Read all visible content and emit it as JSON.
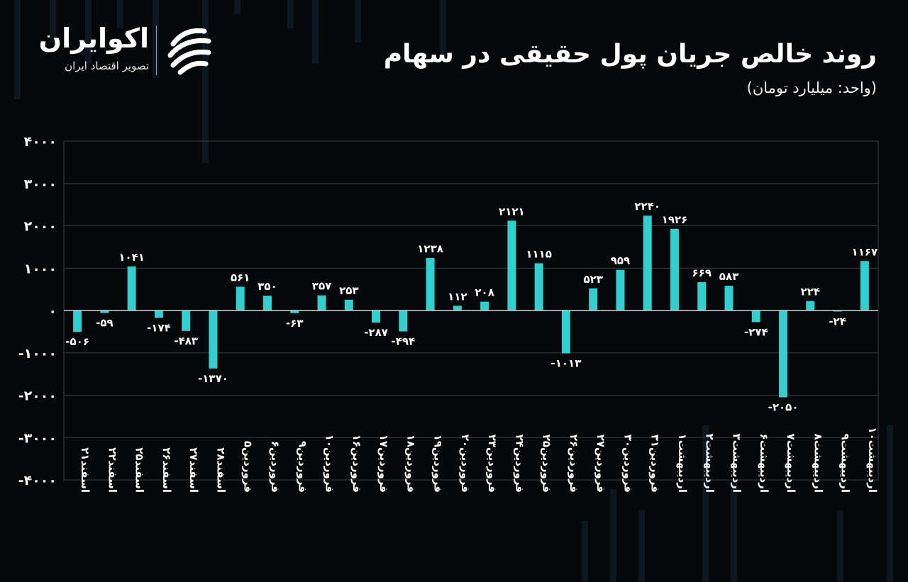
{
  "header": {
    "title": "روند خالص جریان پول حقیقی در سهام",
    "subtitle": "(واحد: میلیارد تومان)"
  },
  "logo": {
    "name": "اکوایران",
    "tagline": "تصویر اقتصاد ایران"
  },
  "colors": {
    "background": "#060708",
    "bar": "#2fd0cf",
    "grid": "#3a3d40",
    "text": "#ffffff"
  },
  "chart_data": {
    "type": "bar",
    "title": "روند خالص جریان پول حقیقی در سهام",
    "ylabel": "میلیارد تومان",
    "xlabel": "",
    "ylim": [
      -4000,
      4000
    ],
    "yticks": [
      4000,
      3000,
      2000,
      1000,
      0,
      -1000,
      -2000,
      -3000,
      -4000
    ],
    "ytick_labels": [
      "۴۰۰۰",
      "۳۰۰۰",
      "۲۰۰۰",
      "۱۰۰۰",
      "۰",
      "-۱۰۰۰",
      "-۲۰۰۰",
      "-۳۰۰۰",
      "-۴۰۰۰"
    ],
    "grid": true,
    "categories": [
      "اسفند۲۱",
      "اسفند۲۲",
      "اسفند۲۵",
      "اسفند۲۶",
      "اسفند۲۷",
      "اسفند۲۸",
      "فروردین۵",
      "فروردین۶",
      "فروردین۹",
      "فروردین۱۰",
      "فروردین۱۶",
      "فروردین۱۷",
      "فروردین۱۸",
      "فروردین۱۹",
      "فروردین۲۰",
      "فروردین۲۳",
      "فروردین۲۴",
      "فروردین۲۵",
      "فروردین۲۶",
      "فروردین۲۷",
      "فروردین۳۰",
      "فروردین۳۱",
      "اردیبهشت۱",
      "اردیبهشت۲",
      "اردیبهشت۳",
      "اردیبهشت۶",
      "اردیبهشت۷",
      "اردیبهشت۸",
      "اردیبهشت۹",
      "اردیبهشت۱۰"
    ],
    "values": [
      -506,
      -59,
      1041,
      -174,
      -483,
      -1370,
      561,
      350,
      -63,
      357,
      253,
      -287,
      -494,
      1238,
      112,
      208,
      2121,
      1115,
      -1013,
      523,
      959,
      2240,
      1926,
      669,
      583,
      -274,
      -2050,
      224,
      -24,
      1167
    ],
    "value_labels": [
      "-۵۰۶",
      "-۵۹",
      "۱۰۴۱",
      "-۱۷۴",
      "-۴۸۳",
      "-۱۳۷۰",
      "۵۶۱",
      "۳۵۰",
      "-۶۳",
      "۳۵۷",
      "۲۵۳",
      "-۲۸۷",
      "-۴۹۴",
      "۱۲۳۸",
      "۱۱۲",
      "۲۰۸",
      "۲۱۲۱",
      "۱۱۱۵",
      "-۱۰۱۳",
      "۵۲۳",
      "۹۵۹",
      "۲۲۴۰",
      "۱۹۲۶",
      "۶۶۹",
      "۵۸۳",
      "-۲۷۴",
      "-۲۰۵۰",
      "۲۲۴",
      "-۲۴",
      "۱۱۶۷"
    ]
  }
}
